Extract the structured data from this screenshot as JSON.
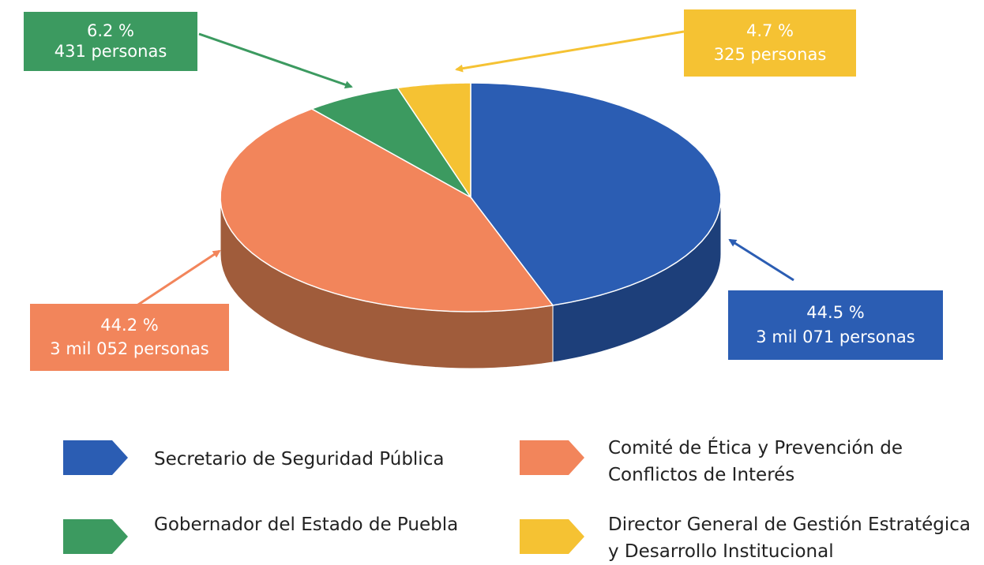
{
  "chart_data": {
    "type": "pie",
    "series": [
      {
        "name": "Secretario de Seguridad Pública",
        "color": "#2b5db3",
        "side_color": "#1d3f7a"
      },
      {
        "name": "Comité de Ética y Prevención de Conflictos de Interés",
        "color": "#f2855b",
        "side_color": "#a05c3b"
      },
      {
        "name": "Gobernador del Estado de Puebla",
        "color": "#3c9a60",
        "side_color": "#2a6b43"
      },
      {
        "name": "Director General de Gestión Estratégica y Desarrollo Institucional",
        "color": "#f5c233",
        "side_color": "#a88423"
      }
    ],
    "values": [
      44.5,
      44.2,
      6.2,
      4.7
    ],
    "value_labels": [
      "44.5 %",
      "44.2 %",
      "6.2 %",
      "4.7 %"
    ],
    "person_labels": [
      "3 mil 071 personas",
      "3 mil 052 personas",
      "431 personas",
      "325 personas"
    ]
  }
}
